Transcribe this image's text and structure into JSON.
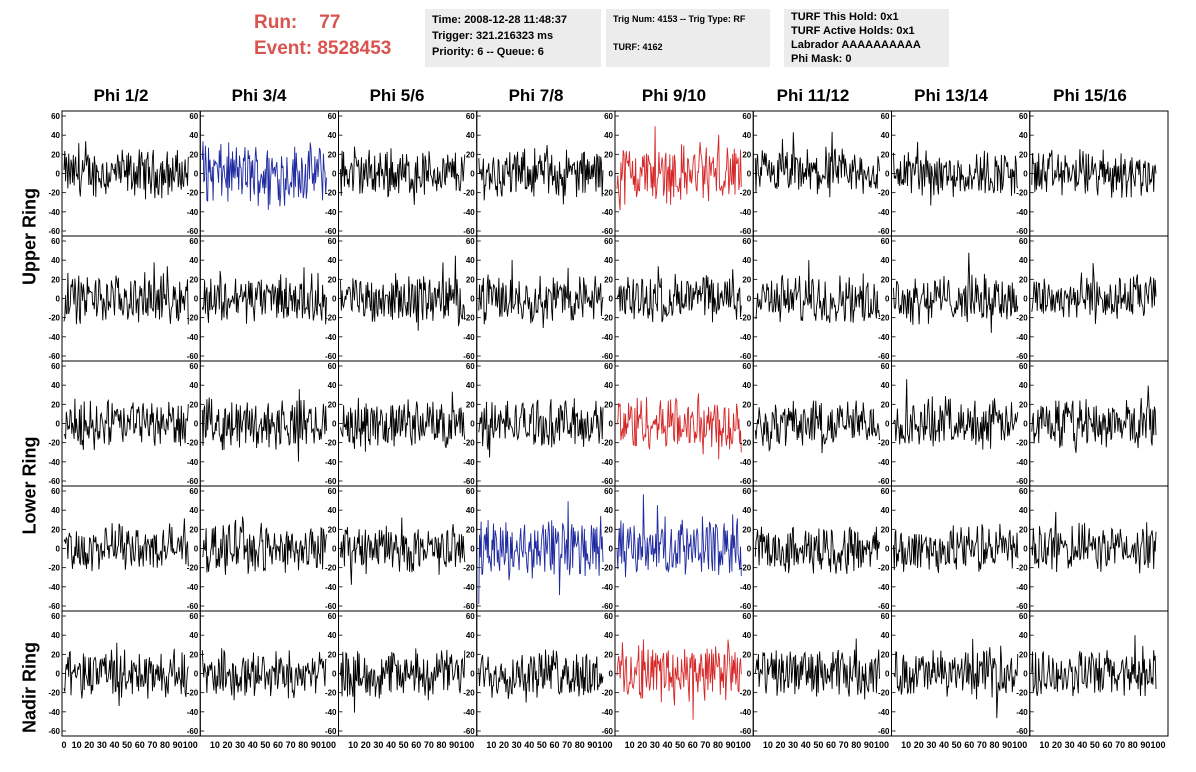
{
  "run": {
    "label": "Run:",
    "value": "77"
  },
  "event": {
    "label": "Event:",
    "value": "8528453"
  },
  "info_time": {
    "time": "Time: 2008-12-28 11:48:37",
    "trigger": "Trigger: 321.216323 ms",
    "priority": "Priority: 6 -- Queue: 6"
  },
  "info_trig": {
    "trig": "Trig Num: 4153 -- Trig Type: RF",
    "turf": "TURF: 4162"
  },
  "info_turf": {
    "hold": "TURF This Hold: 0x1",
    "active": "TURF Active Holds: 0x1",
    "labrador": "Labrador AAAAAAAAAA",
    "mask": "Phi Mask: 0"
  },
  "phi_headers": [
    "Phi 1/2",
    "Phi 3/4",
    "Phi 5/6",
    "Phi 7/8",
    "Phi 9/10",
    "Phi 11/12",
    "Phi 13/14",
    "Phi 15/16"
  ],
  "ring_labels": [
    "Upper Ring",
    "Lower Ring",
    "Nadir Ring"
  ],
  "y_ticks": [
    "60",
    "40",
    "20",
    "0",
    "-20",
    "-40",
    "-60"
  ],
  "x_ticks": [
    "0",
    "10",
    "20",
    "30",
    "40",
    "50",
    "60",
    "70",
    "80",
    "90",
    "100"
  ],
  "colors": {
    "run_text": "#d9534f",
    "trace_black": "#000000",
    "trace_blue": "#1f2aa0",
    "trace_red": "#d62728",
    "panel_bg": "#ececec"
  },
  "highlighted_panels": [
    {
      "row": 0,
      "col": 1,
      "color": "blue"
    },
    {
      "row": 0,
      "col": 4,
      "color": "red"
    },
    {
      "row": 2,
      "col": 4,
      "color": "red"
    },
    {
      "row": 3,
      "col": 3,
      "color": "blue"
    },
    {
      "row": 3,
      "col": 4,
      "color": "blue"
    },
    {
      "row": 4,
      "col": 4,
      "color": "red"
    }
  ]
}
